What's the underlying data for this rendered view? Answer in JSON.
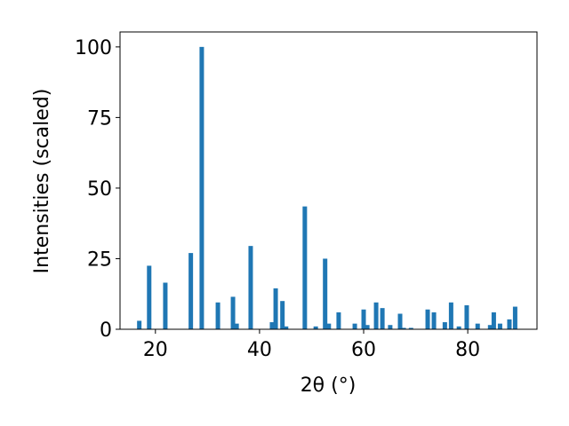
{
  "chart_data": {
    "type": "bar",
    "x_label": "2θ (°)",
    "y_label": "Intensities (scaled)",
    "color": "#1f77b4",
    "x": [
      16.9,
      18.8,
      21.9,
      26.8,
      28.9,
      32.0,
      34.9,
      35.6,
      38.3,
      42.4,
      43.1,
      44.4,
      45.1,
      48.7,
      50.8,
      52.6,
      53.3,
      55.2,
      58.3,
      60.0,
      60.7,
      62.4,
      63.6,
      65.1,
      67.0,
      67.7,
      69.1,
      72.3,
      73.5,
      75.6,
      76.8,
      78.3,
      79.8,
      81.9,
      84.3,
      85.0,
      86.2,
      88.0,
      89.1
    ],
    "values": [
      3,
      22.5,
      16.5,
      27,
      100,
      9.5,
      11.5,
      2,
      29.5,
      2.5,
      14.5,
      10,
      1,
      43.5,
      1,
      25,
      2,
      6,
      2,
      7,
      1.5,
      9.5,
      7.5,
      1.5,
      5.5,
      0.5,
      0.5,
      7,
      6,
      2.5,
      9.5,
      1,
      8.5,
      2,
      1.5,
      6,
      2,
      3.5,
      8
    ],
    "xlim": [
      13.2,
      93.3
    ],
    "ylim": [
      0,
      105.3
    ],
    "xticks": [
      20,
      40,
      60,
      80
    ],
    "yticks": [
      0,
      25,
      50,
      75,
      100
    ]
  }
}
